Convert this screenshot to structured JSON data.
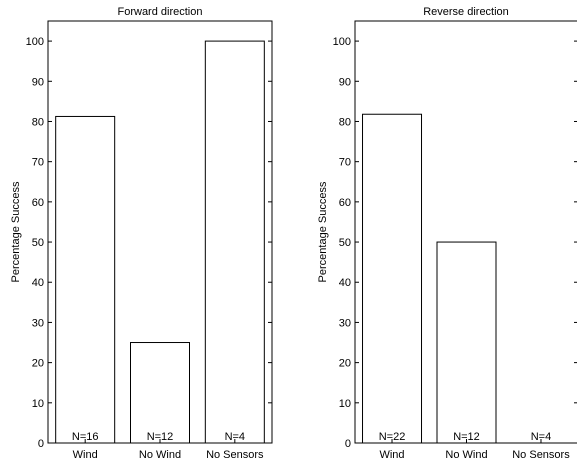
{
  "chart_data": [
    {
      "type": "bar",
      "title": "Forward direction",
      "ylabel": "Percentage Success",
      "xlabel": "",
      "ylim": [
        0,
        105
      ],
      "yticks": [
        0,
        10,
        20,
        30,
        40,
        50,
        60,
        70,
        80,
        90,
        100
      ],
      "categories": [
        "Wind",
        "No Wind",
        "No Sensors"
      ],
      "values": [
        81.25,
        25,
        100
      ],
      "n_labels": [
        "N=16",
        "N=12",
        "N=4"
      ],
      "grid": false
    },
    {
      "type": "bar",
      "title": "Reverse direction",
      "ylabel": "Percentage Success",
      "xlabel": "",
      "ylim": [
        0,
        105
      ],
      "yticks": [
        0,
        10,
        20,
        30,
        40,
        50,
        60,
        70,
        80,
        90,
        100
      ],
      "categories": [
        "Wind",
        "No Wind",
        "No Sensors"
      ],
      "values": [
        81.8,
        50,
        0
      ],
      "n_labels": [
        "N=22",
        "N=12",
        "N=4"
      ],
      "grid": false
    }
  ]
}
